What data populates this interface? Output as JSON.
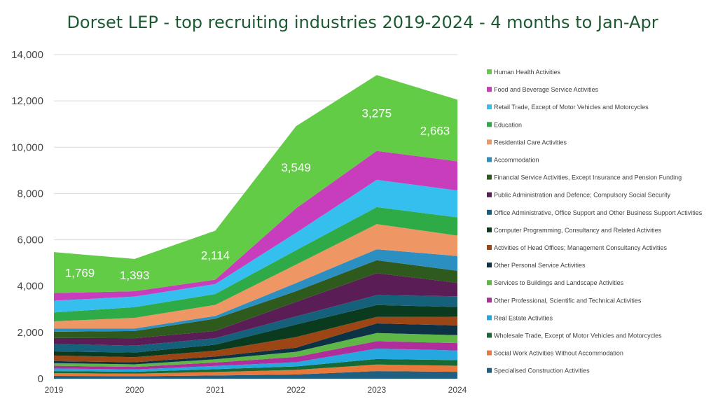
{
  "chart_data": {
    "type": "area",
    "stacked": true,
    "title": "Dorset LEP - top recruiting industries 2019-2024  - 4 months to Jan-Apr",
    "xlabel": "",
    "ylabel": "",
    "ylim": [
      0,
      14000
    ],
    "yticks": [
      "0",
      "2,000",
      "4,000",
      "6,000",
      "8,000",
      "10,000",
      "12,000",
      "14,000"
    ],
    "ytick_values": [
      0,
      2000,
      4000,
      6000,
      8000,
      10000,
      12000,
      14000
    ],
    "x": [
      "2019",
      "2020",
      "2021",
      "2022",
      "2023",
      "2024"
    ],
    "grid": "horizontal",
    "legend_position": "right",
    "series": [
      {
        "name": "Specialised Construction Activities",
        "color": "#1f5f82",
        "values": [
          120,
          110,
          140,
          180,
          330,
          300
        ]
      },
      {
        "name": "Social Work Activities Without Accommodation",
        "color": "#e8793a",
        "values": [
          120,
          110,
          150,
          200,
          280,
          260
        ]
      },
      {
        "name": "Wholesale Trade, Except of Motor Vehicles and Motorcycles",
        "color": "#166a35",
        "values": [
          90,
          80,
          120,
          150,
          240,
          240
        ]
      },
      {
        "name": "Real Estate Activities",
        "color": "#25a8e0",
        "values": [
          110,
          100,
          140,
          180,
          450,
          420
        ]
      },
      {
        "name": "Other Professional, Scientific and Technical Activities",
        "color": "#b02d9c",
        "values": [
          120,
          110,
          150,
          230,
          320,
          320
        ]
      },
      {
        "name": "Services to Buildings and Landscape Activities",
        "color": "#5fb747",
        "values": [
          110,
          110,
          140,
          220,
          350,
          340
        ]
      },
      {
        "name": "Other Personal Service Activities",
        "color": "#0c3245",
        "values": [
          90,
          90,
          120,
          180,
          420,
          420
        ]
      },
      {
        "name": "Activities of Head Offices; Management Consultancy Activities",
        "color": "#9c4515",
        "values": [
          240,
          220,
          250,
          460,
          280,
          380
        ]
      },
      {
        "name": "Computer Programming, Consultancy and Related Activities",
        "color": "#0b3b1e",
        "values": [
          180,
          200,
          260,
          540,
          510,
          420
        ]
      },
      {
        "name": "Office Administrative, Office Support and Other Business Support Activities",
        "color": "#15607a",
        "values": [
          320,
          300,
          280,
          350,
          430,
          460
        ]
      },
      {
        "name": "Public Administration and Defence; Compulsory Social Security",
        "color": "#5b1d55",
        "values": [
          260,
          320,
          310,
          630,
          950,
          580
        ]
      },
      {
        "name": "Financial Service Activities, Except Insurance and Pension Funding",
        "color": "#2f5a1d",
        "values": [
          270,
          310,
          530,
          460,
          560,
          520
        ]
      },
      {
        "name": "Accommodation",
        "color": "#2b8fc2",
        "values": [
          140,
          110,
          120,
          350,
          470,
          640
        ]
      },
      {
        "name": "Residential Care Activities",
        "color": "#ee9764",
        "values": [
          310,
          460,
          480,
          800,
          1090,
          880
        ]
      },
      {
        "name": "Education",
        "color": "#2eaa47",
        "values": [
          380,
          460,
          470,
          620,
          730,
          790
        ]
      },
      {
        "name": "Retail Trade, Except of Motor Vehicles and Motorcycles",
        "color": "#35bfee",
        "values": [
          510,
          460,
          430,
          750,
          1180,
          1160
        ]
      },
      {
        "name": "Food and Beverage Service Activities",
        "color": "#c73dbb",
        "values": [
          330,
          230,
          190,
          1060,
          1250,
          1260
        ]
      },
      {
        "name": "Human Health Activities",
        "color": "#63cc47",
        "values": [
          1769,
          1393,
          2114,
          3549,
          3275,
          2663
        ]
      }
    ],
    "data_labels": [
      {
        "series": "Human Health Activities",
        "x": "2019",
        "label": "1,769"
      },
      {
        "series": "Human Health Activities",
        "x": "2020",
        "label": "1,393"
      },
      {
        "series": "Human Health Activities",
        "x": "2021",
        "label": "2,114"
      },
      {
        "series": "Human Health Activities",
        "x": "2022",
        "label": "3,549"
      },
      {
        "series": "Human Health Activities",
        "x": "2023",
        "label": "3,275"
      },
      {
        "series": "Human Health Activities",
        "x": "2024",
        "label": "2,663"
      }
    ],
    "colors": {
      "title": "#1c5a32",
      "axis_text": "#444444",
      "grid": "#d9d9d9",
      "data_label": "#ffffff"
    }
  }
}
